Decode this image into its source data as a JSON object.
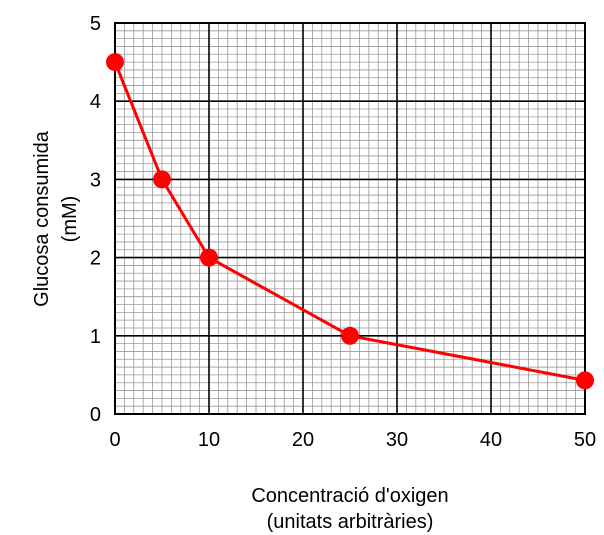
{
  "chart_data": {
    "type": "line",
    "title": "",
    "xlabel": [
      "Concentració d'oxigen",
      "(unitats arbitràries)"
    ],
    "ylabel": [
      "Glucosa consumida",
      "(mM)"
    ],
    "xlim": [
      0,
      50
    ],
    "ylim": [
      0,
      5
    ],
    "x_ticks": [
      0,
      10,
      20,
      30,
      40,
      50
    ],
    "y_ticks": [
      0,
      1,
      2,
      3,
      4,
      5
    ],
    "x_tick_labels": [
      "0",
      "10",
      "20",
      "30",
      "40",
      "50"
    ],
    "y_tick_labels": [
      "0",
      "1",
      "2",
      "3",
      "4",
      "5"
    ],
    "grid": true,
    "series": [
      {
        "color": "#ff0000",
        "points": [
          {
            "x": 0,
            "y": 4.5
          },
          {
            "x": 5,
            "y": 3.0
          },
          {
            "x": 10,
            "y": 2.0
          },
          {
            "x": 25,
            "y": 1.0
          },
          {
            "x": 50,
            "y": 0.43
          }
        ]
      }
    ]
  }
}
